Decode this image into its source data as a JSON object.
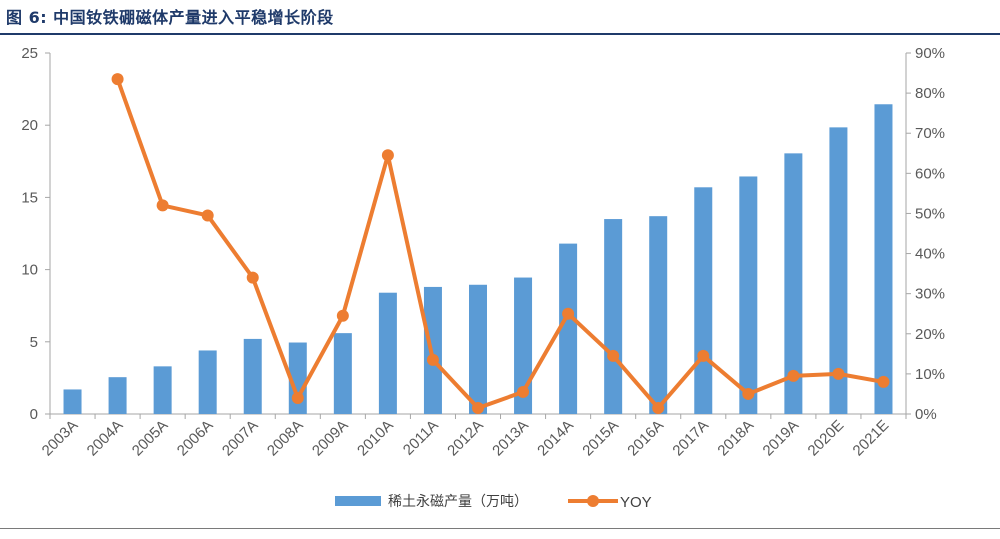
{
  "figure": {
    "title": "图 6: 中国钕铁硼磁体产量进入平稳增长阶段"
  },
  "chart_data": {
    "type": "bar",
    "categories": [
      "2003A",
      "2004A",
      "2005A",
      "2006A",
      "2007A",
      "2008A",
      "2009A",
      "2010A",
      "2011A",
      "2012A",
      "2013A",
      "2014A",
      "2015A",
      "2016A",
      "2017A",
      "2018A",
      "2019A",
      "2020E",
      "2021E"
    ],
    "series": [
      {
        "name": "稀土永磁产量（万吨）",
        "type": "bar",
        "axis": "left",
        "color": "#5b9bd5",
        "values": [
          1.7,
          2.55,
          3.3,
          4.4,
          5.2,
          4.95,
          5.6,
          8.4,
          8.8,
          8.95,
          9.45,
          11.8,
          13.5,
          13.7,
          15.7,
          16.45,
          18.05,
          19.85,
          21.45
        ]
      },
      {
        "name": "YOY",
        "type": "line",
        "axis": "right",
        "color": "#ed7d31",
        "values": [
          null,
          83.5,
          52.0,
          49.5,
          34.0,
          4.0,
          24.5,
          64.5,
          13.5,
          1.5,
          5.5,
          25.0,
          14.5,
          1.5,
          14.5,
          5.0,
          9.5,
          10.0,
          8.0
        ]
      }
    ],
    "y_left": {
      "ylim": [
        0,
        25
      ],
      "ticks": [
        "0",
        "5",
        "10",
        "15",
        "20",
        "25"
      ]
    },
    "y_right": {
      "ylim": [
        0,
        90
      ],
      "ticks": [
        "0%",
        "10%",
        "20%",
        "30%",
        "40%",
        "50%",
        "60%",
        "70%",
        "80%",
        "90%"
      ]
    },
    "grid": false,
    "legend": "bottom-center"
  }
}
